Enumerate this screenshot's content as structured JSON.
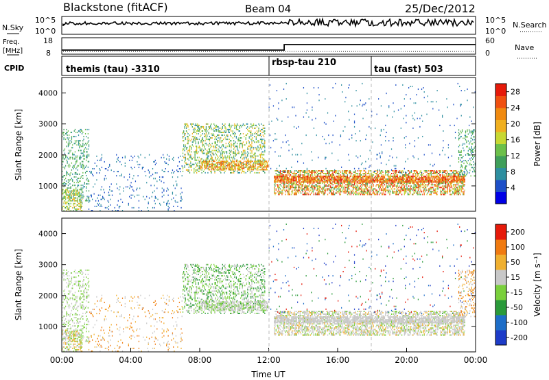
{
  "header": {
    "station": "Blackstone (fitACF)",
    "beam": "Beam 04",
    "date": "25/Dec/2012"
  },
  "status_panels": {
    "nsky_label": "N.Sky",
    "nsearch_label": "N.Search",
    "freq_label_top": "Freq.",
    "freq_label_unit": "[MHz]",
    "nave_label": "Nave",
    "cpid_label": "CPID",
    "nsky_ticks": [
      "10^5",
      "10^0"
    ],
    "nsearch_ticks": [
      "10^5",
      "10^0"
    ],
    "freq_ticks": [
      "18",
      "8"
    ],
    "nave_ticks": [
      "60",
      "0"
    ],
    "cpid_segments": [
      {
        "label": "themis (tau) -3310",
        "start": 0.0
      },
      {
        "label": "rbsp-tau 210",
        "start": 12.0
      },
      {
        "label": "tau (fast) 503",
        "start": 18.0
      }
    ],
    "freq_steps": [
      {
        "from": 0.0,
        "to": 12.9,
        "value": 11
      },
      {
        "from": 12.9,
        "to": 24.0,
        "value": 15
      }
    ]
  },
  "chart_data": [
    {
      "type": "heatmap",
      "name": "power",
      "xlabel": "",
      "ylabel": "Slant Range [km]",
      "xlim": [
        0,
        24
      ],
      "ylim": [
        180,
        4500
      ],
      "yticks": [
        "1000",
        "2000",
        "3000",
        "4000"
      ],
      "ytick_values": [
        1000,
        2000,
        3000,
        4000
      ],
      "colorbar": {
        "label": "Power [dB]",
        "ticks": [
          "4",
          "8",
          "12",
          "16",
          "20",
          "24",
          "28"
        ],
        "range": [
          0,
          30
        ],
        "colors": [
          "#0000e6",
          "#1e50c8",
          "#2e8fa0",
          "#3f9f5a",
          "#6cc04a",
          "#c8d832",
          "#f0b020",
          "#f08a10",
          "#f05010",
          "#e61a0a"
        ]
      },
      "regions": [
        {
          "t0": 0.0,
          "t1": 1.6,
          "r0": 500,
          "r1": 2800,
          "density": 0.2,
          "levels": [
            2,
            3,
            4
          ]
        },
        {
          "t0": 0.0,
          "t1": 1.2,
          "r0": 180,
          "r1": 900,
          "density": 0.45,
          "levels": [
            3,
            4,
            5,
            6
          ]
        },
        {
          "t0": 1.5,
          "t1": 7.0,
          "r0": 180,
          "r1": 2000,
          "density": 0.06,
          "levels": [
            1,
            2
          ]
        },
        {
          "t0": 7.0,
          "t1": 11.8,
          "r0": 1400,
          "r1": 3000,
          "density": 0.3,
          "levels": [
            2,
            3,
            4,
            5,
            6
          ]
        },
        {
          "t0": 8.0,
          "t1": 12.0,
          "r0": 1500,
          "r1": 1800,
          "density": 0.55,
          "levels": [
            5,
            6,
            7,
            8
          ]
        },
        {
          "t0": 12.3,
          "t1": 23.4,
          "r0": 700,
          "r1": 1500,
          "density": 0.5,
          "levels": [
            3,
            4,
            5,
            6,
            7,
            8,
            9
          ]
        },
        {
          "t0": 12.3,
          "t1": 23.4,
          "r0": 1100,
          "r1": 1300,
          "density": 0.7,
          "levels": [
            6,
            7,
            8,
            9
          ]
        },
        {
          "t0": 12.0,
          "t1": 24.0,
          "r0": 1400,
          "r1": 4300,
          "density": 0.02,
          "levels": [
            1,
            2
          ]
        },
        {
          "t0": 23.0,
          "t1": 24.0,
          "r0": 1300,
          "r1": 2800,
          "density": 0.25,
          "levels": [
            2,
            3,
            4
          ]
        }
      ]
    },
    {
      "type": "heatmap",
      "name": "velocity",
      "xlabel": "Time UT",
      "ylabel": "Slant Range [km]",
      "xlim": [
        0,
        24
      ],
      "ylim": [
        180,
        4500
      ],
      "xticks": [
        "00:00",
        "04:00",
        "08:00",
        "12:00",
        "16:00",
        "20:00",
        "00:00"
      ],
      "xtick_values": [
        0,
        4,
        8,
        12,
        16,
        20,
        24
      ],
      "yticks": [
        "1000",
        "2000",
        "3000",
        "4000"
      ],
      "ytick_values": [
        1000,
        2000,
        3000,
        4000
      ],
      "colorbar": {
        "label": "Velocity [m s⁻¹]",
        "ticks": [
          "200",
          "100",
          "50",
          "15",
          "-15",
          "-50",
          "-100",
          "-200"
        ],
        "colors": [
          "#1e3cc8",
          "#1e6ec8",
          "#2a9a3a",
          "#7ad03c",
          "#c8c8c8",
          "#f0b030",
          "#f07a10",
          "#e61a0a"
        ]
      },
      "regions": [
        {
          "t0": 0.0,
          "t1": 1.6,
          "r0": 500,
          "r1": 2800,
          "density": 0.2,
          "levels": [
            3,
            4
          ]
        },
        {
          "t0": 0.0,
          "t1": 1.2,
          "r0": 180,
          "r1": 900,
          "density": 0.45,
          "levels": [
            3,
            4,
            5
          ]
        },
        {
          "t0": 1.5,
          "t1": 7.0,
          "r0": 180,
          "r1": 2000,
          "density": 0.06,
          "levels": [
            5,
            6,
            4
          ]
        },
        {
          "t0": 7.0,
          "t1": 11.8,
          "r0": 1400,
          "r1": 3000,
          "density": 0.3,
          "levels": [
            2,
            3,
            4
          ]
        },
        {
          "t0": 8.0,
          "t1": 12.0,
          "r0": 1500,
          "r1": 1800,
          "density": 0.55,
          "levels": [
            4,
            4,
            3
          ]
        },
        {
          "t0": 12.3,
          "t1": 23.4,
          "r0": 700,
          "r1": 1500,
          "density": 0.5,
          "levels": [
            4,
            4,
            4,
            5,
            3
          ]
        },
        {
          "t0": 12.3,
          "t1": 23.4,
          "r0": 1100,
          "r1": 1300,
          "density": 0.7,
          "levels": [
            4,
            4,
            4
          ]
        },
        {
          "t0": 12.0,
          "t1": 24.0,
          "r0": 1400,
          "r1": 4300,
          "density": 0.02,
          "levels": [
            0,
            1,
            2,
            7
          ]
        },
        {
          "t0": 23.0,
          "t1": 24.0,
          "r0": 1300,
          "r1": 2800,
          "density": 0.25,
          "levels": [
            5,
            6,
            4
          ]
        }
      ]
    }
  ]
}
